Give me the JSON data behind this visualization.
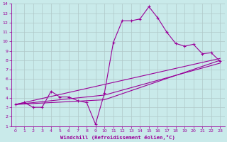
{
  "xlabel": "Windchill (Refroidissement éolien,°C)",
  "xlim": [
    -0.5,
    23.5
  ],
  "ylim": [
    1,
    14
  ],
  "xticks": [
    0,
    1,
    2,
    3,
    4,
    5,
    6,
    7,
    8,
    9,
    10,
    11,
    12,
    13,
    14,
    15,
    16,
    17,
    18,
    19,
    20,
    21,
    22,
    23
  ],
  "yticks": [
    1,
    2,
    3,
    4,
    5,
    6,
    7,
    8,
    9,
    10,
    11,
    12,
    13,
    14
  ],
  "bg_color": "#c9eaea",
  "line_color": "#990099",
  "grid_color": "#b0c8c8",
  "main_line": {
    "x": [
      0,
      1,
      2,
      3,
      4,
      5,
      6,
      7,
      8,
      9,
      10,
      11,
      12,
      13,
      14,
      15,
      16,
      17,
      18,
      19,
      20,
      21,
      22,
      23
    ],
    "y": [
      3.3,
      3.5,
      3.0,
      3.0,
      4.7,
      4.1,
      4.1,
      3.7,
      3.5,
      1.2,
      4.5,
      9.9,
      12.2,
      12.2,
      12.4,
      13.7,
      12.5,
      11.0,
      9.8,
      9.5,
      9.7,
      8.7,
      8.8,
      7.9
    ]
  },
  "reg_lines": [
    {
      "x": [
        0,
        23
      ],
      "y": [
        3.3,
        8.2
      ]
    },
    {
      "x": [
        0,
        10,
        23
      ],
      "y": [
        3.3,
        3.8,
        8.0
      ]
    },
    {
      "x": [
        0,
        10,
        23
      ],
      "y": [
        3.3,
        4.3,
        7.7
      ]
    }
  ]
}
